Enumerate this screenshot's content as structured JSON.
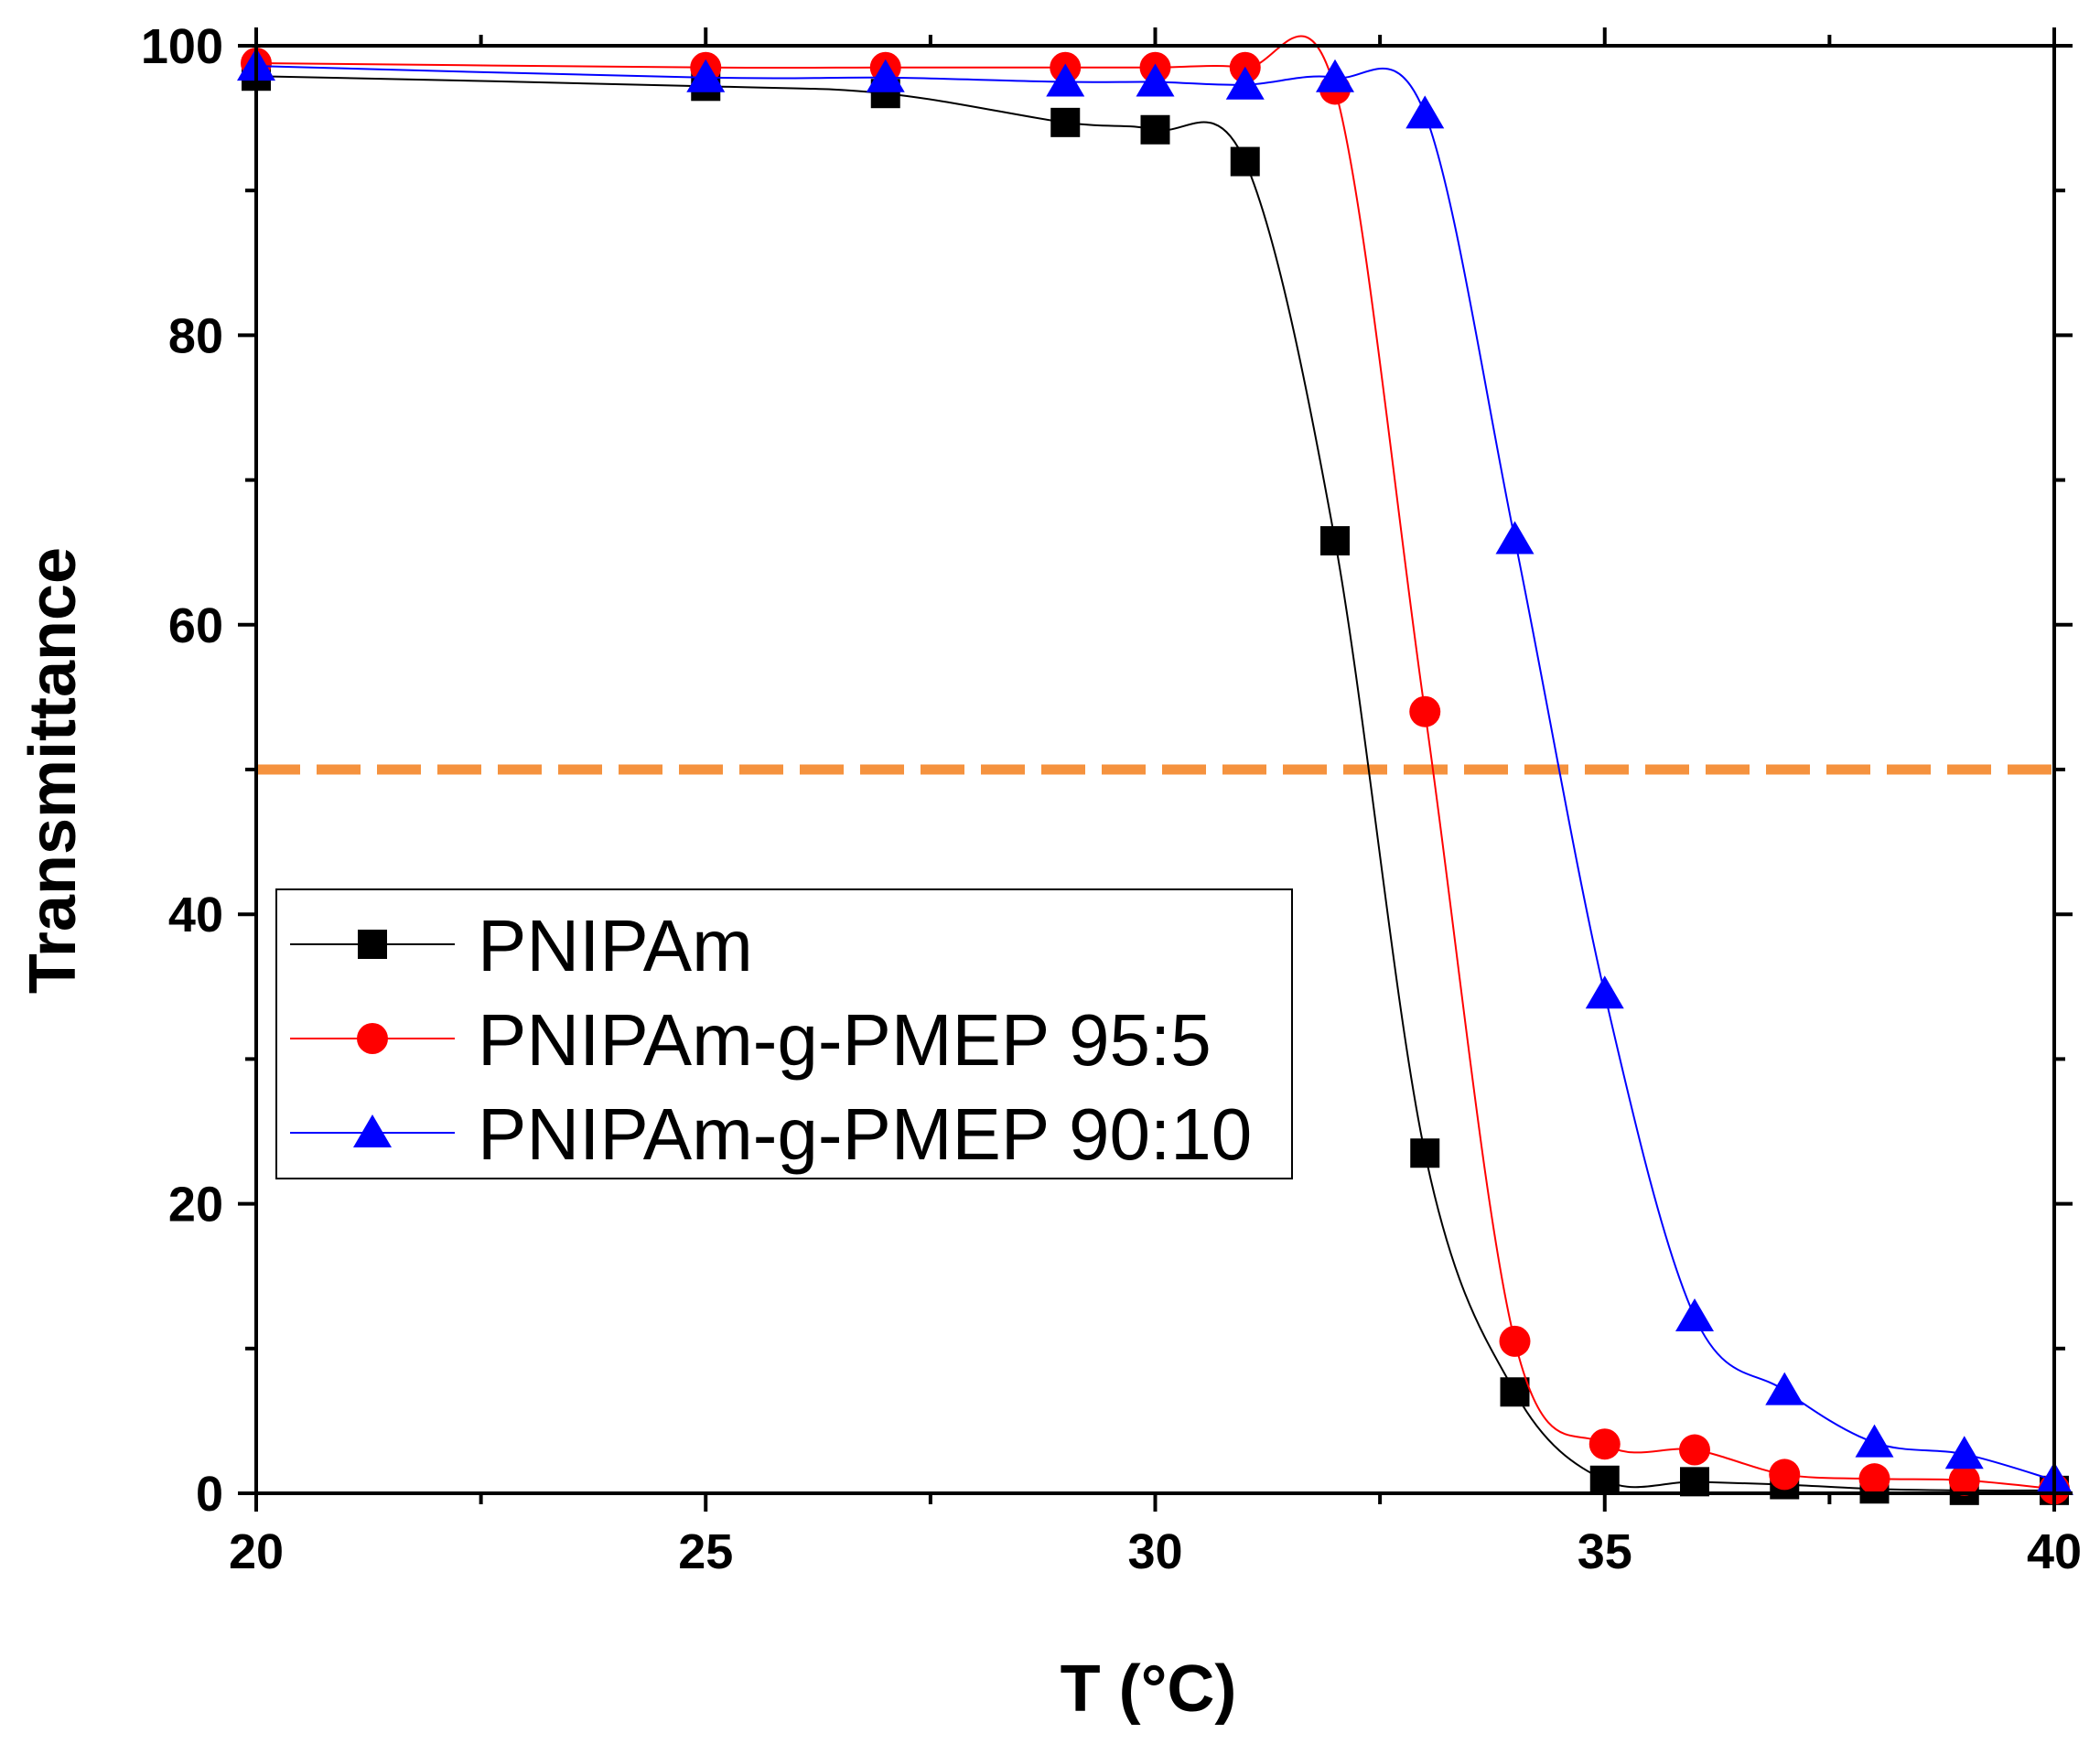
{
  "chart_data": {
    "type": "line",
    "title": "",
    "xlabel": "T (°C)",
    "ylabel": "Transmittance",
    "xlim": [
      20,
      40
    ],
    "ylim": [
      0,
      100
    ],
    "x_ticks": [
      20,
      25,
      30,
      35,
      40
    ],
    "y_ticks": [
      0,
      20,
      40,
      60,
      80,
      100
    ],
    "x_tick_labels": [
      "20",
      "25",
      "30",
      "35",
      "40"
    ],
    "y_tick_labels": [
      "0",
      "20",
      "40",
      "60",
      "80",
      "100"
    ],
    "x_minor_step": 2.5,
    "y_minor_step": 10,
    "grid": false,
    "legend_position": "lower-left",
    "reference_line": {
      "y": 50,
      "color": "#f5923e",
      "style": "dashed"
    },
    "series": [
      {
        "name": "PNIPAm",
        "color": "#000000",
        "marker": "square",
        "x": [
          20,
          25,
          27,
          29,
          30,
          31,
          32,
          33,
          34,
          35,
          36,
          37,
          38,
          39,
          40
        ],
        "y": [
          97.9,
          97.2,
          96.7,
          94.7,
          94.2,
          92.0,
          65.8,
          23.5,
          7.0,
          0.9,
          0.8,
          0.6,
          0.3,
          0.2,
          0.2
        ]
      },
      {
        "name": "PNIPAm-g-PMEP 95:5",
        "color": "#ff0000",
        "marker": "circle",
        "x": [
          20,
          25,
          27,
          29,
          30,
          31,
          32,
          33,
          34,
          35,
          36,
          37,
          38,
          39,
          40
        ],
        "y": [
          98.8,
          98.5,
          98.5,
          98.5,
          98.5,
          98.5,
          97.0,
          54.0,
          10.5,
          3.4,
          3.0,
          1.3,
          1.0,
          0.9,
          0.3
        ]
      },
      {
        "name": "PNIPAm-g-PMEP 90:10",
        "color": "#0000ff",
        "marker": "triangle",
        "x": [
          20,
          25,
          27,
          29,
          30,
          31,
          32,
          33,
          34,
          35,
          36,
          37,
          38,
          39,
          40
        ],
        "y": [
          98.6,
          97.8,
          97.8,
          97.5,
          97.5,
          97.3,
          97.8,
          95.3,
          65.9,
          34.5,
          12.2,
          7.1,
          3.5,
          2.7,
          0.9
        ]
      }
    ]
  }
}
